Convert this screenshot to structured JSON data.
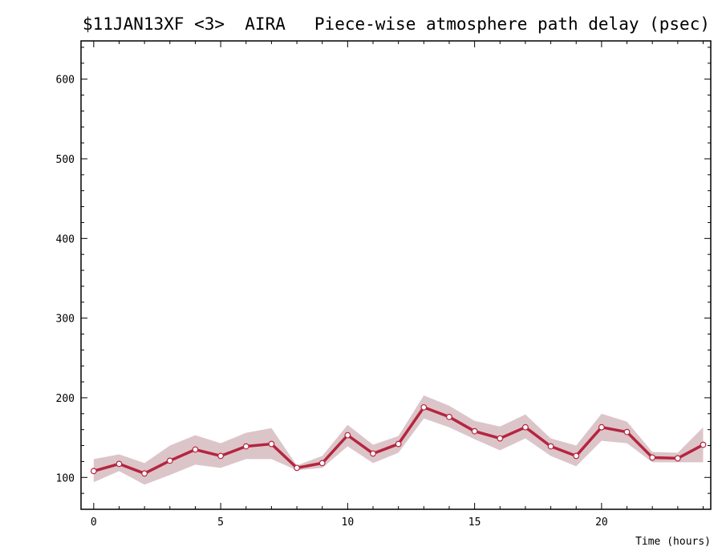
{
  "header": {
    "left": "$11JAN13XF <3>  AIRA",
    "right": "Piece-wise atmosphere path delay (psec)"
  },
  "chart_data": {
    "type": "line",
    "title": "Piece-wise atmosphere path delay (psec)",
    "xlabel": "Time (hours)",
    "ylabel": "",
    "xlim": [
      -0.5,
      24.3
    ],
    "ylim": [
      60,
      648
    ],
    "xticks": [
      0,
      5,
      10,
      15,
      20
    ],
    "yticks": [
      100,
      200,
      300,
      400,
      500,
      600
    ],
    "grid": false,
    "colors": {
      "line": "#b5253f",
      "band": "#dcc5c9",
      "point_fill": "#ffffff"
    },
    "series": [
      {
        "x": [
          0,
          1,
          2,
          3,
          4,
          5,
          6,
          7,
          8,
          9,
          10,
          11,
          12,
          13,
          14,
          15,
          16,
          17,
          18,
          19,
          20,
          21,
          22,
          23,
          24
        ],
        "y": [
          108,
          117,
          105,
          121,
          135,
          127,
          139,
          142,
          112,
          118,
          153,
          130,
          142,
          188,
          176,
          158,
          149,
          163,
          139,
          127,
          163,
          157,
          125,
          124,
          141
        ],
        "lower": [
          94,
          108,
          91,
          103,
          116,
          112,
          123,
          123,
          109,
          112,
          139,
          118,
          131,
          174,
          163,
          148,
          134,
          149,
          127,
          114,
          146,
          143,
          119,
          119,
          119
        ],
        "upper": [
          123,
          129,
          118,
          140,
          153,
          143,
          156,
          162,
          115,
          127,
          166,
          141,
          152,
          203,
          190,
          171,
          164,
          179,
          149,
          140,
          180,
          170,
          132,
          131,
          163
        ]
      }
    ]
  }
}
